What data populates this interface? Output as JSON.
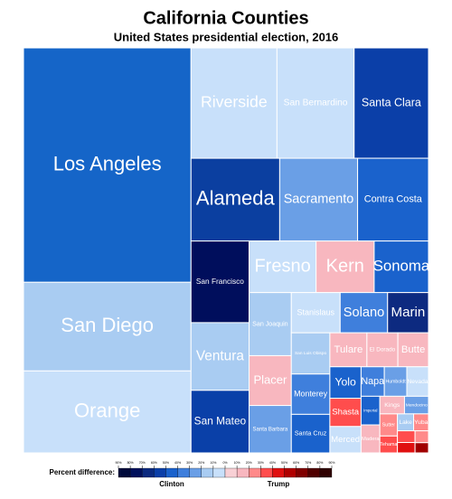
{
  "chart_data": {
    "type": "treemap",
    "title": "California Counties",
    "subtitle": "United States presidential election, 2016",
    "categories": [
      "Los Angeles",
      "San Diego",
      "Orange",
      "Riverside",
      "San Bernardino",
      "Santa Clara",
      "Alameda",
      "Sacramento",
      "Contra Costa",
      "San Francisco",
      "Ventura",
      "San Mateo",
      "Fresno",
      "Kern",
      "Sonoma",
      "San Joaquin",
      "Placer",
      "Santa Barbara",
      "Stanislaus",
      "Solano",
      "Marin",
      "San Luis Obispo",
      "Monterey",
      "Santa Cruz",
      "Tulare",
      "El Dorado",
      "Butte",
      "Yolo",
      "Shasta",
      "Merced",
      "Napa",
      "Humboldt",
      "Nevada",
      "Imperial",
      "Madera",
      "Kings",
      "Mendocino",
      "Sutter",
      "Tehama",
      "Lake",
      "Yuba",
      null,
      null,
      null,
      null
    ],
    "values": [
      3434,
      1299,
      1201,
      830,
      745,
      718,
      642,
      564,
      513,
      415,
      344,
      318,
      302,
      262,
      245,
      233,
      184,
      175,
      172,
      167,
      144,
      139,
      136,
      130,
      110,
      92,
      91,
      86,
      77,
      72,
      60,
      58,
      56,
      47,
      46,
      38,
      37,
      34,
      26,
      24,
      22,
      18,
      16,
      14,
      12
    ],
    "colors": [
      "#1565c8",
      "#a9ccf2",
      "#c8e0fa",
      "#c8e0fa",
      "#c8e0fa",
      "#0b3fa8",
      "#0b3fa0",
      "#6a9fe6",
      "#1a62cc",
      "#000e5c",
      "#a9ccf2",
      "#0a40a8",
      "#c8e0fa",
      "#f8b7bf",
      "#1a62cc",
      "#a9ccf2",
      "#f8b7bf",
      "#6a9fe6",
      "#c8e0fa",
      "#3f7fdc",
      "#0d2a80",
      "#a9ccf2",
      "#3f7fdc",
      "#1a62cc",
      "#f8b7bf",
      "#f8b7bf",
      "#f8b7bf",
      "#1a62cc",
      "#ff4d4d",
      "#c8e0fa",
      "#3f7fdc",
      "#6a9fe6",
      "#c8e0fa",
      "#1a62cc",
      "#f8b7bf",
      "#f8b7bf",
      "#6a9fe6",
      "#ff8a8a",
      "#ff4d4d",
      "#a9ccf2",
      "#ff8a8a",
      "#ff4d4d",
      "#e01010",
      "#ff8a8a",
      "#a00000"
    ],
    "legend": {
      "title": "Percent difference:",
      "left": "Clinton",
      "right": "Trump",
      "colors": [
        "#000a3c",
        "#00105c",
        "#0b2a80",
        "#0b3fa8",
        "#1a62cc",
        "#3f7fdc",
        "#6a9fe6",
        "#a9ccf2",
        "#c8e0fa",
        "#f8d0d5",
        "#f8b7bf",
        "#ff8a8a",
        "#ff4d4d",
        "#e01010",
        "#b00000",
        "#800000",
        "#500000",
        "#300000"
      ],
      "ticks": [
        {
          "value": 90,
          "label": "90%"
        },
        {
          "value": 80,
          "label": "80%"
        },
        {
          "value": 70,
          "label": "70%"
        },
        {
          "value": 60,
          "label": "60%"
        },
        {
          "value": 50,
          "label": "50%"
        },
        {
          "value": 40,
          "label": "40%"
        },
        {
          "value": 30,
          "label": "30%"
        },
        {
          "value": 20,
          "label": "20%"
        },
        {
          "value": 10,
          "label": "10%"
        },
        {
          "value": 0,
          "label": "0%"
        },
        {
          "value": 10,
          "label": "10%"
        },
        {
          "value": 20,
          "label": "20%"
        },
        {
          "value": 30,
          "label": "30%"
        },
        {
          "value": 40,
          "label": "40%"
        },
        {
          "value": 50,
          "label": "50%"
        },
        {
          "value": 60,
          "label": "60%"
        },
        {
          "value": 70,
          "label": "70%"
        },
        {
          "value": 80,
          "label": "80%"
        },
        {
          "value": 90,
          "label": "90%"
        }
      ]
    }
  }
}
